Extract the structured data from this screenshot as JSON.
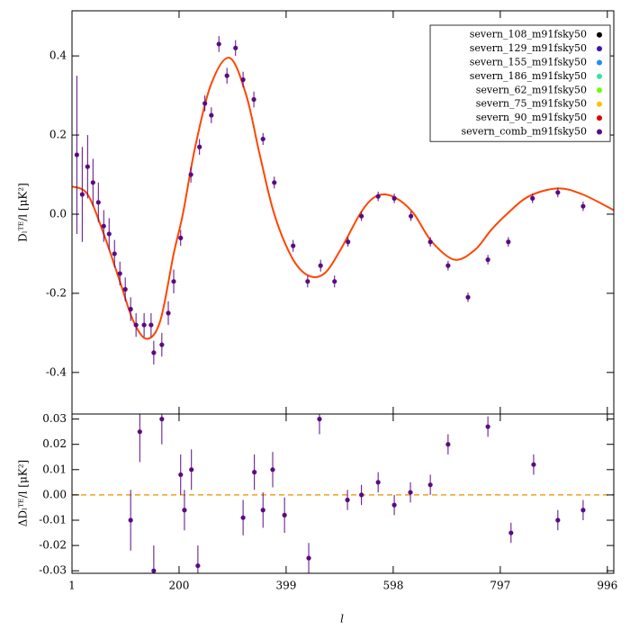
{
  "chart_data": [
    {
      "type": "scatter",
      "ylabel": "Dₗᵀᴱ/l [μK²]",
      "xlim": [
        1,
        1008
      ],
      "xticks": [
        1,
        200,
        399,
        598,
        797,
        996
      ],
      "ylim": [
        -0.505,
        0.514
      ],
      "yticks": [
        -0.4,
        -0.2,
        {
          "value": 0,
          "label": "0.0"
        },
        0.2,
        0.4
      ],
      "legend": "upper right",
      "series": [
        {
          "name": "severn_108_m91fsky50",
          "color": "#000000"
        },
        {
          "name": "severn_129_m91fsky50",
          "color": "#3a14b4"
        },
        {
          "name": "severn_155_m91fsky50",
          "color": "#1e8cff"
        },
        {
          "name": "severn_186_m91fsky50",
          "color": "#32e6a0"
        },
        {
          "name": "severn_62_m91fsky50",
          "color": "#6cff00"
        },
        {
          "name": "severn_75_m91fsky50",
          "color": "#ffc000"
        },
        {
          "name": "severn_90_m91fsky50",
          "color": "#e00000"
        },
        {
          "name": "severn_comb_m91fsky50",
          "color": "#5a0a82",
          "x": [
            10,
            20,
            30,
            40,
            50,
            60,
            70,
            80,
            90,
            100,
            110,
            120,
            135,
            148,
            153,
            168,
            180,
            190,
            203,
            222,
            238,
            248,
            260,
            274,
            289,
            305,
            319,
            339,
            356,
            377,
            412,
            439,
            463,
            489,
            514,
            539,
            570,
            600,
            631,
            667,
            700,
            737,
            774,
            812,
            857,
            904,
            951
          ],
          "values": [
            0.15,
            0.05,
            0.12,
            0.08,
            0.03,
            -0.03,
            -0.05,
            -0.1,
            -0.15,
            -0.19,
            -0.24,
            -0.28,
            -0.28,
            -0.28,
            -0.35,
            -0.33,
            -0.25,
            -0.17,
            -0.06,
            0.1,
            0.17,
            0.28,
            0.25,
            0.43,
            0.35,
            0.42,
            0.34,
            0.29,
            0.19,
            0.08,
            -0.08,
            -0.17,
            -0.13,
            -0.17,
            -0.07,
            -0.005,
            0.045,
            0.04,
            -0.005,
            -0.07,
            -0.13,
            -0.21,
            -0.115,
            -0.07,
            0.04,
            0.055,
            0.02
          ],
          "errors": [
            0.2,
            0.12,
            0.08,
            0.06,
            0.05,
            0.04,
            0.04,
            0.035,
            0.03,
            0.03,
            0.03,
            0.03,
            0.03,
            0.03,
            0.03,
            0.03,
            0.03,
            0.03,
            0.02,
            0.02,
            0.02,
            0.02,
            0.02,
            0.02,
            0.02,
            0.02,
            0.02,
            0.02,
            0.015,
            0.015,
            0.015,
            0.015,
            0.015,
            0.015,
            0.012,
            0.012,
            0.012,
            0.012,
            0.012,
            0.012,
            0.012,
            0.012,
            0.012,
            0.012,
            0.012,
            0.012,
            0.012
          ]
        }
      ],
      "model": {
        "color": "#ff4500",
        "x": [
          2,
          30,
          60,
          90,
          115,
          140,
          165,
          190,
          207,
          230,
          260,
          294,
          325,
          350,
          377,
          410,
          440,
          470,
          500,
          536,
          560,
          583,
          610,
          637,
          670,
          712,
          750,
          780,
          809,
          850,
          904,
          950,
          1008
        ],
        "values": [
          0.07,
          0.05,
          -0.05,
          -0.17,
          -0.27,
          -0.315,
          -0.27,
          -0.1,
          0.0,
          0.17,
          0.33,
          0.395,
          0.3,
          0.15,
          0.0,
          -0.11,
          -0.155,
          -0.15,
          -0.09,
          0.0,
          0.04,
          0.05,
          0.035,
          0.0,
          -0.07,
          -0.115,
          -0.09,
          -0.04,
          0.0,
          0.045,
          0.065,
          0.05,
          0.01
        ]
      }
    },
    {
      "type": "scatter",
      "xlabel": "l",
      "ylabel": "ΔDₗᵀᴱ/l [μK²]",
      "xlim": [
        1,
        1008
      ],
      "xticks": [
        1,
        200,
        399,
        598,
        797,
        996
      ],
      "ylim": [
        -0.031,
        0.032
      ],
      "yticks": [
        -0.03,
        -0.02,
        -0.01,
        {
          "value": 0,
          "label": "0.00"
        },
        0.01,
        0.02,
        0.03
      ],
      "hline": 0,
      "hline_color": "#f0a020",
      "color": "#5a0a82",
      "x": [
        110,
        127,
        153,
        168,
        203,
        210,
        223,
        235,
        319,
        340,
        356,
        374,
        396,
        441,
        461,
        513,
        539,
        570,
        600,
        630,
        667,
        700,
        774,
        817,
        859,
        904,
        951
      ],
      "values": [
        -0.01,
        0.025,
        -0.03,
        0.03,
        0.008,
        -0.006,
        0.01,
        -0.028,
        -0.009,
        0.009,
        -0.006,
        0.01,
        -0.008,
        -0.025,
        0.03,
        -0.002,
        0.0,
        0.005,
        -0.004,
        0.001,
        0.004,
        0.02,
        0.027,
        -0.015,
        0.012,
        -0.01,
        -0.006
      ],
      "errors": [
        0.012,
        0.012,
        0.01,
        0.01,
        0.008,
        0.008,
        0.008,
        0.008,
        0.007,
        0.007,
        0.007,
        0.007,
        0.007,
        0.006,
        0.006,
        0.004,
        0.004,
        0.004,
        0.004,
        0.004,
        0.004,
        0.004,
        0.004,
        0.004,
        0.004,
        0.004,
        0.004
      ]
    }
  ]
}
